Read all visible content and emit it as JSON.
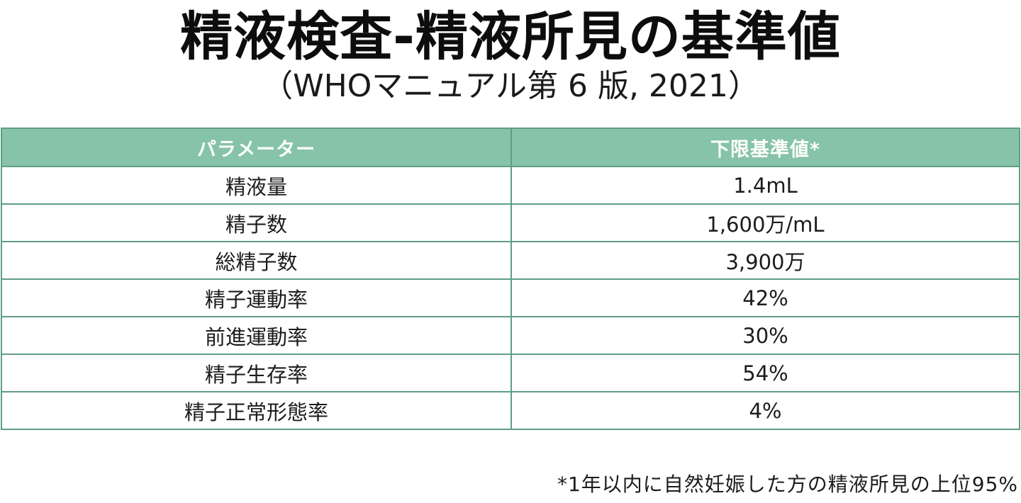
{
  "title": "精液検査-精液所見の基準値",
  "subtitle": "（WHOマニュアル第 6 版, 2021）",
  "table": {
    "headers": [
      "パラメーター",
      "下限基準値*"
    ],
    "rows": [
      [
        "精液量",
        "1.4mL"
      ],
      [
        "精子数",
        "1,600万/mL"
      ],
      [
        "総精子数",
        "3,900万"
      ],
      [
        "精子運動率",
        "42%"
      ],
      [
        "前進運動率",
        "30%"
      ],
      [
        "精子生存率",
        "54%"
      ],
      [
        "精子正常形態率",
        "4%"
      ]
    ]
  },
  "footnote": "*1年以内に自然妊娠した方の精液所見の上位95%",
  "colors": {
    "header_bg": "#86c3a8",
    "border": "#5d9e85",
    "header_text": "#ffffff"
  }
}
